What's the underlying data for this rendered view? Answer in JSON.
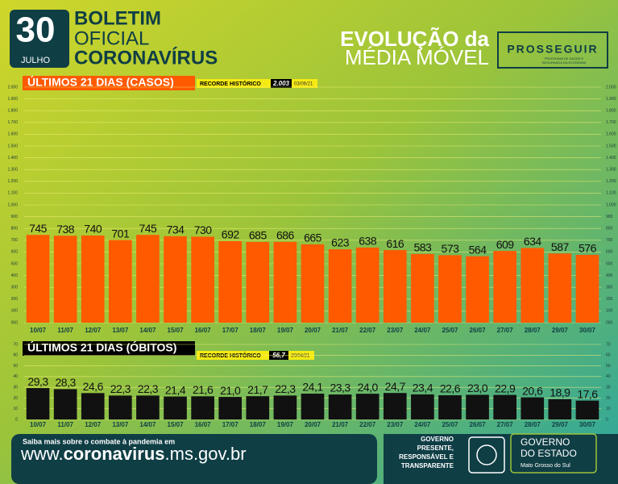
{
  "header": {
    "day": "30",
    "month": "JULHO",
    "line1": "BOLETIM",
    "line2": "OFICIAL",
    "line3": "CORONAVÍRUS",
    "evo1": "EVOLUÇÃO da",
    "evo2": "MÉDIA MÓVEL",
    "program": "PROSSEGUIR",
    "program_sub1": "PROGRAMA DE SAÚDE E",
    "program_sub2": "SEGURANÇA DA ECONOMIA"
  },
  "chart_data": [
    {
      "type": "bar",
      "title": "ÚLTIMOS 21 DIAS (CASOS)",
      "record_label": "RECORDE HISTÓRICO",
      "record_value": "2.003",
      "record_date": "03/06/21",
      "color": "#ff5a00",
      "categories": [
        "10/07",
        "11/07",
        "12/07",
        "13/07",
        "14/07",
        "15/07",
        "16/07",
        "17/07",
        "18/07",
        "19/07",
        "20/07",
        "21/07",
        "22/07",
        "23/07",
        "24/07",
        "25/07",
        "26/07",
        "27/07",
        "28/07",
        "29/07",
        "30/07"
      ],
      "values": [
        745,
        738,
        740,
        701,
        745,
        734,
        730,
        692,
        685,
        686,
        665,
        623,
        638,
        616,
        583,
        573,
        564,
        609,
        634,
        587,
        576
      ],
      "ylim": [
        0,
        2000
      ],
      "yticks": [
        {
          "value": 0,
          "label": "000"
        },
        100,
        200,
        300,
        400,
        500,
        600,
        700,
        800,
        900,
        {
          "value": 1000,
          "label": "1.000"
        },
        {
          "value": 1100,
          "label": "1.100"
        },
        {
          "value": 1200,
          "label": "1.200"
        },
        {
          "value": 1300,
          "label": "1.300"
        },
        {
          "value": 1400,
          "label": "1.400"
        },
        {
          "value": 1500,
          "label": "1.500"
        },
        {
          "value": 1600,
          "label": "1.600"
        },
        {
          "value": 1700,
          "label": "1.700"
        },
        {
          "value": 1800,
          "label": "1.800"
        },
        {
          "value": 1900,
          "label": "1.900"
        },
        {
          "value": 2000,
          "label": "2.000"
        }
      ],
      "grid": true
    },
    {
      "type": "bar",
      "title": "ÚLTIMOS 21 DIAS (ÓBITOS)",
      "record_label": "RECORDE HISTÓRICO",
      "record_value": "56,7",
      "record_date": "20/04/21",
      "color": "#111111",
      "categories": [
        "10/07",
        "11/07",
        "12/07",
        "13/07",
        "14/07",
        "15/07",
        "16/07",
        "17/07",
        "18/07",
        "19/07",
        "20/07",
        "21/07",
        "22/07",
        "23/07",
        "24/07",
        "25/07",
        "26/07",
        "27/07",
        "28/07",
        "29/07",
        "30/07"
      ],
      "values": [
        29.3,
        28.3,
        24.6,
        22.3,
        22.3,
        21.4,
        21.6,
        21.0,
        21.7,
        22.3,
        24.1,
        23.3,
        24.0,
        24.7,
        23.4,
        22.6,
        23.0,
        22.9,
        20.6,
        18.9,
        17.6
      ],
      "value_labels": [
        "29,3",
        "28,3",
        "24,6",
        "22,3",
        "22,3",
        "21,4",
        "21,6",
        "21,0",
        "21,7",
        "22,3",
        "24,1",
        "23,3",
        "24,0",
        "24,7",
        "23,4",
        "22,6",
        "23,0",
        "22,9",
        "20,6",
        "18,9",
        "17,6"
      ],
      "ylim": [
        0,
        70
      ],
      "yticks": [
        0,
        10,
        20,
        30,
        40,
        50,
        60,
        70
      ],
      "grid": true
    }
  ],
  "footer": {
    "info": "Saiba mais sobre o combate à pandemia em",
    "url_pre": "www.",
    "url_bold": "coronavirus",
    "url_post": ".ms.gov.br",
    "slogan1": "GOVERNO",
    "slogan2": "PRESENTE,",
    "slogan3": "RESPONSÁVEL E",
    "slogan4": "TRANSPARENTE",
    "gov1": "GOVERNO",
    "gov2": "DO ESTADO",
    "gov3": "Mato Grosso do Sul"
  }
}
